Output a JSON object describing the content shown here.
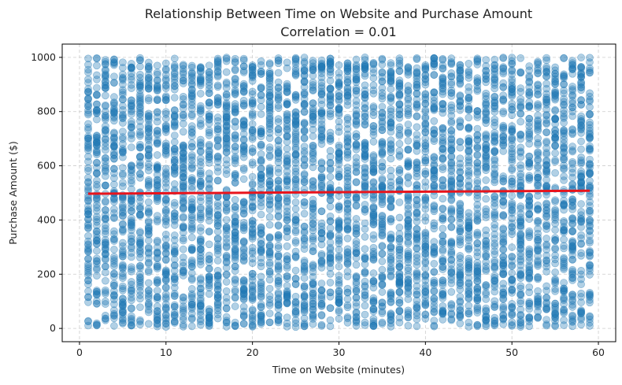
{
  "chart_data": {
    "type": "scatter",
    "title": "Relationship Between Time on Website and Purchase Amount",
    "subtitle": "Correlation = 0.01",
    "xlabel": "Time on Website (minutes)",
    "ylabel": "Purchase Amount ($)",
    "xlim": [
      -2.0,
      62.0
    ],
    "ylim": [
      -49.0,
      1049.0
    ],
    "x_ticks": [
      0,
      10,
      20,
      30,
      40,
      50,
      60
    ],
    "y_ticks": [
      0,
      200,
      400,
      600,
      800,
      1000
    ],
    "grid": true,
    "point_color": "#1f77b4",
    "point_alpha": 0.35,
    "x_values_observed": [
      1,
      2,
      3,
      4,
      5,
      6,
      7,
      8,
      9,
      10,
      11,
      12,
      13,
      14,
      15,
      16,
      17,
      18,
      19,
      20,
      21,
      22,
      23,
      24,
      25,
      26,
      27,
      28,
      29,
      30,
      31,
      32,
      33,
      34,
      35,
      36,
      37,
      38,
      39,
      40,
      41,
      42,
      43,
      44,
      45,
      46,
      47,
      48,
      49,
      50,
      51,
      52,
      53,
      54,
      55,
      56,
      57,
      58,
      59
    ],
    "y_range_observed": [
      5,
      1000
    ],
    "trend_line": {
      "color": "#e8141c",
      "x": [
        1,
        59
      ],
      "y": [
        497,
        508
      ]
    }
  }
}
